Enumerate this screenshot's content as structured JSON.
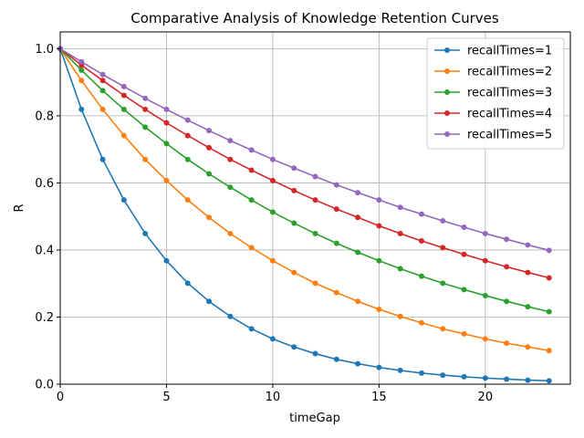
{
  "chart_data": {
    "type": "line",
    "title": "Comparative Analysis of Knowledge Retention Curves",
    "xlabel": "timeGap",
    "ylabel": "R",
    "xlim": [
      0,
      24
    ],
    "ylim": [
      0,
      1.05
    ],
    "xticks": [
      0,
      5,
      10,
      15,
      20
    ],
    "yticks": [
      0.0,
      0.2,
      0.4,
      0.6,
      0.8,
      1.0
    ],
    "xtick_labels": [
      "0",
      "5",
      "10",
      "15",
      "20"
    ],
    "ytick_labels": [
      "0.0",
      "0.2",
      "0.4",
      "0.6",
      "0.8",
      "1.0"
    ],
    "grid": true,
    "legend_position": "top-right",
    "x": [
      0,
      1,
      2,
      3,
      4,
      5,
      6,
      7,
      8,
      9,
      10,
      11,
      12,
      13,
      14,
      15,
      16,
      17,
      18,
      19,
      20,
      21,
      22,
      23
    ],
    "series": [
      {
        "name": "recallTimes=1",
        "color": "#1f77b4",
        "values": [
          1.0,
          0.819,
          0.67,
          0.549,
          0.449,
          0.368,
          0.301,
          0.247,
          0.202,
          0.165,
          0.135,
          0.111,
          0.091,
          0.074,
          0.061,
          0.05,
          0.041,
          0.033,
          0.027,
          0.022,
          0.018,
          0.015,
          0.012,
          0.01
        ]
      },
      {
        "name": "recallTimes=2",
        "color": "#ff7f0e",
        "values": [
          1.0,
          0.905,
          0.819,
          0.741,
          0.67,
          0.607,
          0.549,
          0.497,
          0.449,
          0.407,
          0.368,
          0.333,
          0.301,
          0.273,
          0.247,
          0.223,
          0.202,
          0.183,
          0.165,
          0.15,
          0.135,
          0.122,
          0.111,
          0.1
        ]
      },
      {
        "name": "recallTimes=3",
        "color": "#2ca02c",
        "values": [
          1.0,
          0.936,
          0.875,
          0.819,
          0.766,
          0.717,
          0.67,
          0.627,
          0.587,
          0.549,
          0.513,
          0.48,
          0.449,
          0.42,
          0.393,
          0.368,
          0.344,
          0.322,
          0.301,
          0.282,
          0.264,
          0.247,
          0.231,
          0.216
        ]
      },
      {
        "name": "recallTimes=4",
        "color": "#d62728",
        "values": [
          1.0,
          0.951,
          0.905,
          0.861,
          0.819,
          0.779,
          0.741,
          0.705,
          0.67,
          0.638,
          0.607,
          0.577,
          0.549,
          0.522,
          0.497,
          0.472,
          0.449,
          0.427,
          0.407,
          0.387,
          0.368,
          0.35,
          0.333,
          0.317
        ]
      },
      {
        "name": "recallTimes=5",
        "color": "#9467bd",
        "values": [
          1.0,
          0.961,
          0.923,
          0.887,
          0.852,
          0.819,
          0.787,
          0.756,
          0.726,
          0.698,
          0.67,
          0.644,
          0.619,
          0.594,
          0.571,
          0.549,
          0.527,
          0.507,
          0.487,
          0.468,
          0.449,
          0.432,
          0.415,
          0.399
        ]
      }
    ]
  }
}
